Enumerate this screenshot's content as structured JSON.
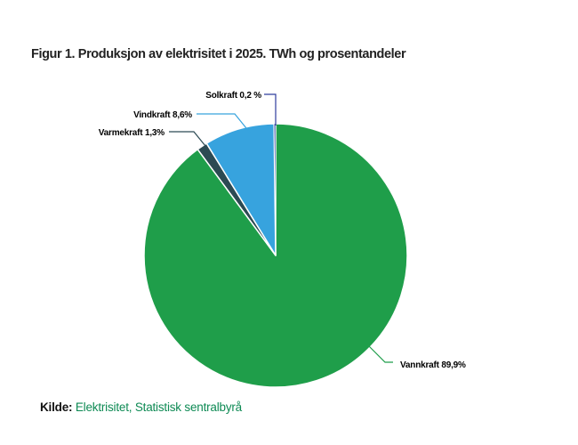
{
  "title": "Figur 1. Produksjon av elektrisitet i 2025. TWh og prosentandeler",
  "source": {
    "prefix": "Kilde:",
    "link_text": "Elektrisitet, Statistisk sentralbyrå",
    "link_color": "#0e8a54"
  },
  "chart_data": {
    "type": "pie",
    "title": "Figur 1. Produksjon av elektrisitet i 2025. TWh og prosentandeler",
    "unit": "percent",
    "direction": "clockwise",
    "start_angle_deg": 0,
    "legend": "none",
    "data_labels": "outside, connected with leader lines in slice color",
    "slices": [
      {
        "name": "Vannkraft",
        "value_pct": 89.9,
        "label": "Vannkraft 89,9%",
        "color": "#1f9e4a"
      },
      {
        "name": "Varmekraft",
        "value_pct": 1.3,
        "label": "Varmekraft 1,3%",
        "color": "#2c4a53"
      },
      {
        "name": "Vindkraft",
        "value_pct": 8.6,
        "label": "Vindkraft 8,6%",
        "color": "#37a3de"
      },
      {
        "name": "Solkraft",
        "value_pct": 0.2,
        "label": "Solkraft 0,2 %",
        "color": "#2e3d9e"
      }
    ],
    "source": "Kilde: Elektrisitet, Statistisk sentralbyrå"
  }
}
